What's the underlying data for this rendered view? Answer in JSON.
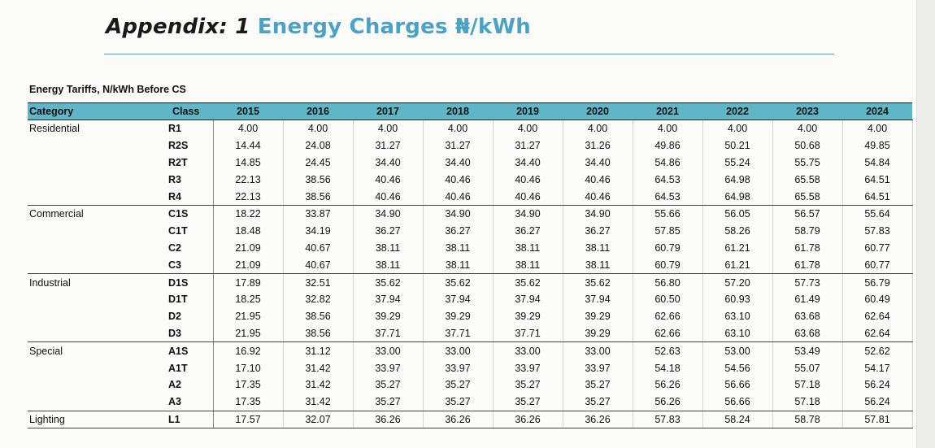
{
  "heading": {
    "lead": "Appendix: 1",
    "accent": "Energy Charges ₦/kWh"
  },
  "table_title": "Energy Tariffs, N/kWh Before CS",
  "columns": {
    "category": "Category",
    "class": "Class",
    "years": [
      "2015",
      "2016",
      "2017",
      "2018",
      "2019",
      "2020",
      "2021",
      "2022",
      "2023",
      "2024"
    ]
  },
  "rows": [
    {
      "category": "Residential",
      "class": "R1",
      "values": [
        "4.00",
        "4.00",
        "4.00",
        "4.00",
        "4.00",
        "4.00",
        "4.00",
        "4.00",
        "4.00",
        "4.00"
      ],
      "group_end": false
    },
    {
      "category": "",
      "class": "R2S",
      "values": [
        "14.44",
        "24.08",
        "31.27",
        "31.27",
        "31.27",
        "31.26",
        "49.86",
        "50.21",
        "50.68",
        "49.85"
      ],
      "group_end": false
    },
    {
      "category": "",
      "class": "R2T",
      "values": [
        "14.85",
        "24.45",
        "34.40",
        "34.40",
        "34.40",
        "34.40",
        "54.86",
        "55.24",
        "55.75",
        "54.84"
      ],
      "group_end": false
    },
    {
      "category": "",
      "class": "R3",
      "values": [
        "22.13",
        "38.56",
        "40.46",
        "40.46",
        "40.46",
        "40.46",
        "64.53",
        "64.98",
        "65.58",
        "64.51"
      ],
      "group_end": false
    },
    {
      "category": "",
      "class": "R4",
      "values": [
        "22.13",
        "38.56",
        "40.46",
        "40.46",
        "40.46",
        "40.46",
        "64.53",
        "64.98",
        "65.58",
        "64.51"
      ],
      "group_end": true
    },
    {
      "category": "Commercial",
      "class": "C1S",
      "values": [
        "18.22",
        "33.87",
        "34.90",
        "34.90",
        "34.90",
        "34.90",
        "55.66",
        "56.05",
        "56.57",
        "55.64"
      ],
      "group_end": false
    },
    {
      "category": "",
      "class": "C1T",
      "values": [
        "18.48",
        "34.19",
        "36.27",
        "36.27",
        "36.27",
        "36.27",
        "57.85",
        "58.26",
        "58.79",
        "57.83"
      ],
      "group_end": false
    },
    {
      "category": "",
      "class": "C2",
      "values": [
        "21.09",
        "40.67",
        "38.11",
        "38.11",
        "38.11",
        "38.11",
        "60.79",
        "61.21",
        "61.78",
        "60.77"
      ],
      "group_end": false
    },
    {
      "category": "",
      "class": "C3",
      "values": [
        "21.09",
        "40.67",
        "38.11",
        "38.11",
        "38.11",
        "38.11",
        "60.79",
        "61.21",
        "61.78",
        "60.77"
      ],
      "group_end": true
    },
    {
      "category": "Industrial",
      "class": "D1S",
      "values": [
        "17.89",
        "32.51",
        "35.62",
        "35.62",
        "35.62",
        "35.62",
        "56.80",
        "57.20",
        "57.73",
        "56.79"
      ],
      "group_end": false
    },
    {
      "category": "",
      "class": "D1T",
      "values": [
        "18.25",
        "32.82",
        "37.94",
        "37.94",
        "37.94",
        "37.94",
        "60.50",
        "60.93",
        "61.49",
        "60.49"
      ],
      "group_end": false
    },
    {
      "category": "",
      "class": "D2",
      "values": [
        "21.95",
        "38.56",
        "39.29",
        "39.29",
        "39.29",
        "39.29",
        "62.66",
        "63.10",
        "63.68",
        "62.64"
      ],
      "group_end": false
    },
    {
      "category": "",
      "class": "D3",
      "values": [
        "21.95",
        "38.56",
        "37.71",
        "37.71",
        "37.71",
        "39.29",
        "62.66",
        "63.10",
        "63.68",
        "62.64"
      ],
      "group_end": true
    },
    {
      "category": "Special",
      "class": "A1S",
      "values": [
        "16.92",
        "31.12",
        "33.00",
        "33.00",
        "33.00",
        "33.00",
        "52.63",
        "53.00",
        "53.49",
        "52.62"
      ],
      "group_end": false
    },
    {
      "category": "",
      "class": "A1T",
      "values": [
        "17.10",
        "31.42",
        "33.97",
        "33.97",
        "33.97",
        "33.97",
        "54.18",
        "54.56",
        "55.07",
        "54.17"
      ],
      "group_end": false
    },
    {
      "category": "",
      "class": "A2",
      "values": [
        "17.35",
        "31.42",
        "35.27",
        "35.27",
        "35.27",
        "35.27",
        "56.26",
        "56.66",
        "57.18",
        "56.24"
      ],
      "group_end": false
    },
    {
      "category": "",
      "class": "A3",
      "values": [
        "17.35",
        "31.42",
        "35.27",
        "35.27",
        "35.27",
        "35.27",
        "56.26",
        "56.66",
        "57.18",
        "56.24"
      ],
      "group_end": true
    },
    {
      "category": "Lighting",
      "class": "L1",
      "values": [
        "17.57",
        "32.07",
        "36.26",
        "36.26",
        "36.26",
        "36.26",
        "57.83",
        "58.24",
        "58.78",
        "57.81"
      ],
      "group_end": true
    }
  ]
}
